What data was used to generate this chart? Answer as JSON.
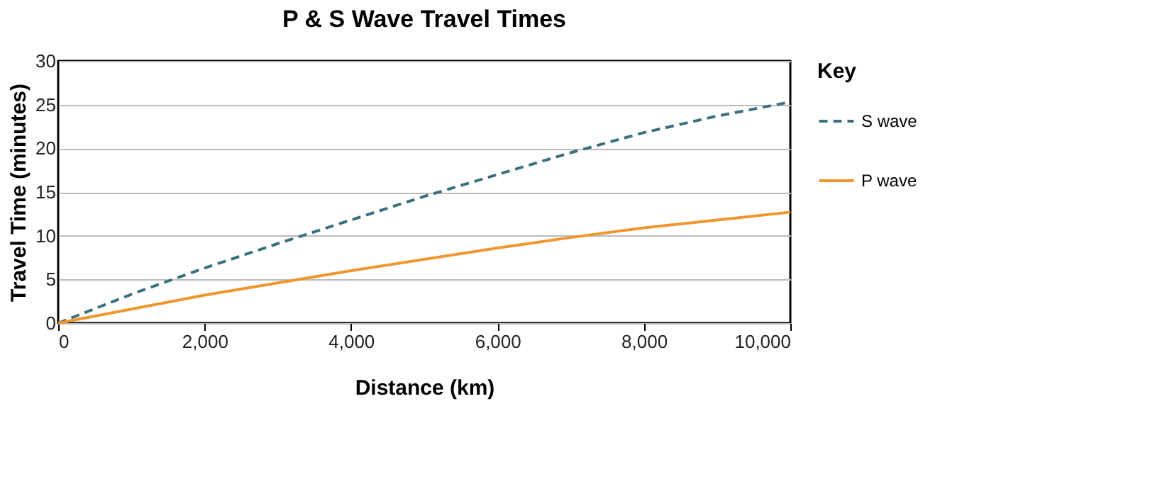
{
  "chart_data": {
    "type": "line",
    "title": "P & S Wave Travel Times",
    "xlabel": "Distance (km)",
    "ylabel": "Travel Time (minutes)",
    "legend_title": "Key",
    "series": [
      {
        "name": "S wave",
        "color": "#3a6f80",
        "line_style": "dashed",
        "x": [
          0,
          1000,
          2000,
          3000,
          4000,
          5000,
          6000,
          7000,
          8000,
          9000,
          10000
        ],
        "values": [
          0,
          3.3,
          6.3,
          9.1,
          11.8,
          14.5,
          17,
          19.5,
          21.8,
          23.7,
          25.3
        ]
      },
      {
        "name": "P wave",
        "color": "#f0962e",
        "line_style": "solid",
        "x": [
          0,
          1000,
          2000,
          3000,
          4000,
          5000,
          6000,
          7000,
          8000,
          9000,
          10000
        ],
        "values": [
          0,
          1.6,
          3.2,
          4.6,
          6,
          7.3,
          8.6,
          9.8,
          10.9,
          11.8,
          12.7
        ]
      }
    ],
    "xlim": [
      0,
      10000
    ],
    "xticks": [
      {
        "value": 0,
        "label": "0"
      },
      {
        "value": 2000,
        "label": "2,000"
      },
      {
        "value": 4000,
        "label": "4,000"
      },
      {
        "value": 6000,
        "label": "6,000"
      },
      {
        "value": 8000,
        "label": "8,000"
      },
      {
        "value": 10000,
        "label": "10,000"
      }
    ],
    "ylim": [
      0,
      30
    ],
    "yticks": [
      0,
      5,
      10,
      15,
      20,
      25,
      30
    ],
    "grid": "y",
    "legend": "right",
    "marker": "none"
  }
}
